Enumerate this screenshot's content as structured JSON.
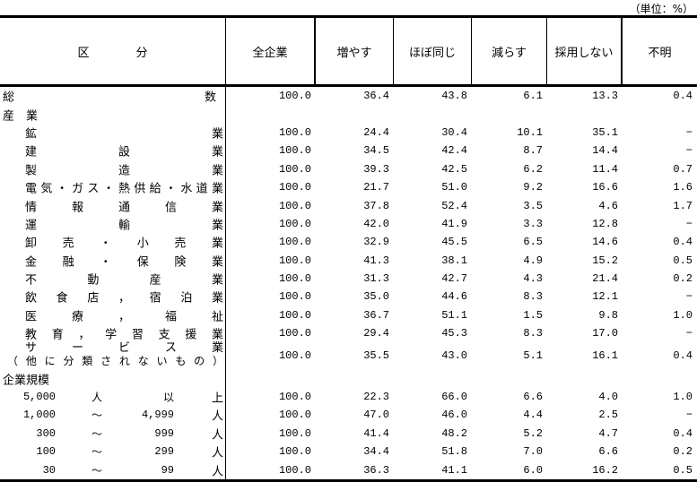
{
  "unit": "（単位：%）",
  "header": {
    "category": "区分",
    "columns": [
      "全企業",
      "増やす",
      "ほぼ同じ",
      "減らす",
      "採用しない",
      "不明"
    ]
  },
  "rows": {
    "total": {
      "label": "総 数",
      "values": [
        "100.0",
        "36.4",
        "43.8",
        "6.1",
        "13.3",
        "0.4"
      ]
    },
    "industry_heading": "産　業",
    "industries": [
      {
        "label": "鉱 業",
        "values": [
          "100.0",
          "24.4",
          "30.4",
          "10.1",
          "35.1",
          "−"
        ]
      },
      {
        "label": "建 設 業",
        "values": [
          "100.0",
          "34.5",
          "42.4",
          "8.7",
          "14.4",
          "−"
        ]
      },
      {
        "label": "製 造 業",
        "values": [
          "100.0",
          "39.3",
          "42.5",
          "6.2",
          "11.4",
          "0.7"
        ]
      },
      {
        "label": "電気・ガス・熱供給・水道業",
        "values": [
          "100.0",
          "21.7",
          "51.0",
          "9.2",
          "16.6",
          "1.6"
        ]
      },
      {
        "label": "情 報 通 信 業",
        "values": [
          "100.0",
          "37.8",
          "52.4",
          "3.5",
          "4.6",
          "1.7"
        ]
      },
      {
        "label": "運 輸 業",
        "values": [
          "100.0",
          "42.0",
          "41.9",
          "3.3",
          "12.8",
          "−"
        ]
      },
      {
        "label": "卸 売 ・ 小 売 業",
        "values": [
          "100.0",
          "32.9",
          "45.5",
          "6.5",
          "14.6",
          "0.4"
        ]
      },
      {
        "label": "金 融 ・ 保 険 業",
        "values": [
          "100.0",
          "41.3",
          "38.1",
          "4.9",
          "15.2",
          "0.5"
        ]
      },
      {
        "label": "不 動 産 業",
        "values": [
          "100.0",
          "31.3",
          "42.7",
          "4.3",
          "21.4",
          "0.2"
        ]
      },
      {
        "label": "飲 食 店 ， 宿 泊 業",
        "values": [
          "100.0",
          "35.0",
          "44.6",
          "8.3",
          "12.1",
          "−"
        ]
      },
      {
        "label": "医 療 ， 福 祉",
        "values": [
          "100.0",
          "36.7",
          "51.1",
          "1.5",
          "9.8",
          "1.0"
        ]
      },
      {
        "label": "教 育 ， 学 習 支 援 業",
        "values": [
          "100.0",
          "29.4",
          "45.3",
          "8.3",
          "17.0",
          "−"
        ]
      }
    ],
    "service": {
      "label_line1": "サ ー ビ ス 業",
      "label_line2": "（ 他 に 分 類 さ れ な い も の ）",
      "values": [
        "100.0",
        "35.5",
        "43.0",
        "5.1",
        "16.1",
        "0.4"
      ]
    },
    "size_heading": "企業規模",
    "sizes": [
      {
        "from": "5,000",
        "sep": "人",
        "to": "以",
        "suffix": "上",
        "values": [
          "100.0",
          "22.3",
          "66.0",
          "6.6",
          "4.0",
          "1.0"
        ]
      },
      {
        "from": "1,000",
        "sep": "〜",
        "to": "4,999",
        "suffix": "人",
        "values": [
          "100.0",
          "47.0",
          "46.0",
          "4.4",
          "2.5",
          "−"
        ]
      },
      {
        "from": "300",
        "sep": "〜",
        "to": "999",
        "suffix": "人",
        "values": [
          "100.0",
          "41.4",
          "48.2",
          "5.2",
          "4.7",
          "0.4"
        ]
      },
      {
        "from": "100",
        "sep": "〜",
        "to": "299",
        "suffix": "人",
        "values": [
          "100.0",
          "34.4",
          "51.8",
          "7.0",
          "6.6",
          "0.2"
        ]
      },
      {
        "from": "30",
        "sep": "〜",
        "to": "99",
        "suffix": "人",
        "values": [
          "100.0",
          "36.3",
          "41.1",
          "6.0",
          "16.2",
          "0.5"
        ]
      }
    ]
  }
}
